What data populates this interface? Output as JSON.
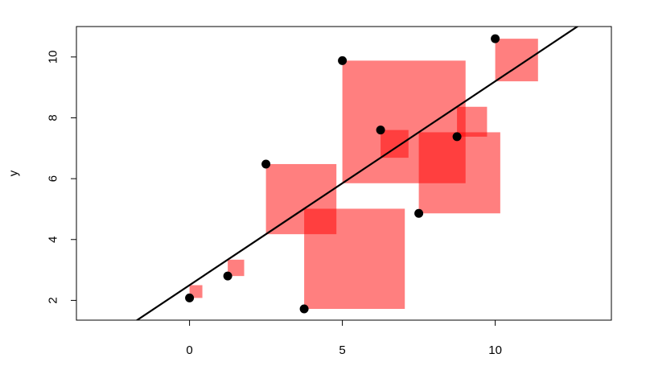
{
  "chart_data": {
    "type": "scatter",
    "title": "",
    "xlabel": "",
    "ylabel": "y",
    "xlim": [
      -3.7,
      13.8
    ],
    "ylim": [
      1.35,
      11.0
    ],
    "xticks": [
      0,
      5,
      10
    ],
    "yticks": [
      2,
      4,
      6,
      8,
      10
    ],
    "points": [
      {
        "x": 0.0,
        "y": 2.08
      },
      {
        "x": 1.25,
        "y": 2.8
      },
      {
        "x": 2.5,
        "y": 6.48
      },
      {
        "x": 3.75,
        "y": 1.72
      },
      {
        "x": 5.0,
        "y": 9.88
      },
      {
        "x": 6.25,
        "y": 7.6
      },
      {
        "x": 7.5,
        "y": 4.86
      },
      {
        "x": 8.75,
        "y": 7.38
      },
      {
        "x": 10.0,
        "y": 10.6
      }
    ],
    "fit_line": {
      "intercept": 2.5,
      "slope": 0.67
    },
    "residual_squares": true,
    "colors": {
      "square": "#ff0000",
      "square_opacity": 0.5,
      "point": "#000000",
      "line": "#000000"
    },
    "grid": false
  }
}
